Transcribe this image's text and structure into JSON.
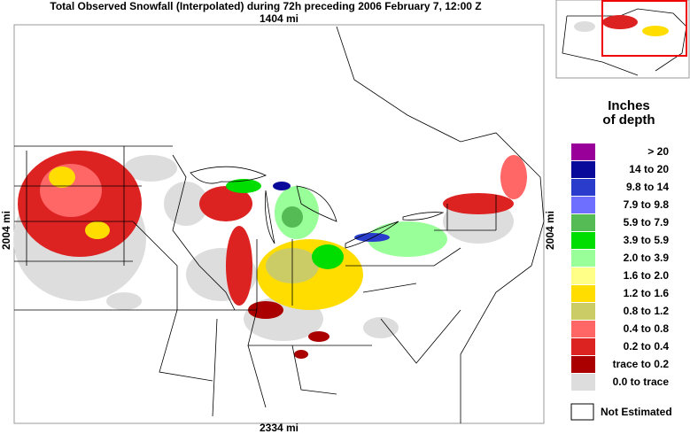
{
  "header": {
    "title": "Total Observed Snowfall (Interpolated) during 72h preceding 2006 February 7, 12:00 Z"
  },
  "map": {
    "top_label": "1404 mi",
    "bottom_label": "2334 mi",
    "left_label": "2004 mi",
    "right_label": "2004 mi"
  },
  "legend": {
    "title_lines": [
      "Inches",
      "of depth"
    ],
    "items": [
      {
        "label": "> 20",
        "color": "#990099"
      },
      {
        "label": "14 to 20",
        "color": "#0a0a9a"
      },
      {
        "label": "9.8 to 14",
        "color": "#2a3ccc"
      },
      {
        "label": "7.9 to 9.8",
        "color": "#6f6fff"
      },
      {
        "label": "5.9 to 7.9",
        "color": "#55bb55"
      },
      {
        "label": "3.9 to 5.9",
        "color": "#00dd00"
      },
      {
        "label": "2.0 to 3.9",
        "color": "#99ff99"
      },
      {
        "label": "1.6 to 2.0",
        "color": "#ffff88"
      },
      {
        "label": "1.2 to 1.6",
        "color": "#ffdd00"
      },
      {
        "label": "0.8 to 1.2",
        "color": "#cccc66"
      },
      {
        "label": "0.4 to 0.8",
        "color": "#ff6666"
      },
      {
        "label": "0.2 to 0.4",
        "color": "#dd2222"
      },
      {
        "label": "trace to 0.2",
        "color": "#aa0000"
      },
      {
        "label": "0.0 to trace",
        "color": "#dddddd"
      }
    ],
    "not_estimated": {
      "label": "Not Estimated",
      "color": "#ffffff"
    }
  }
}
